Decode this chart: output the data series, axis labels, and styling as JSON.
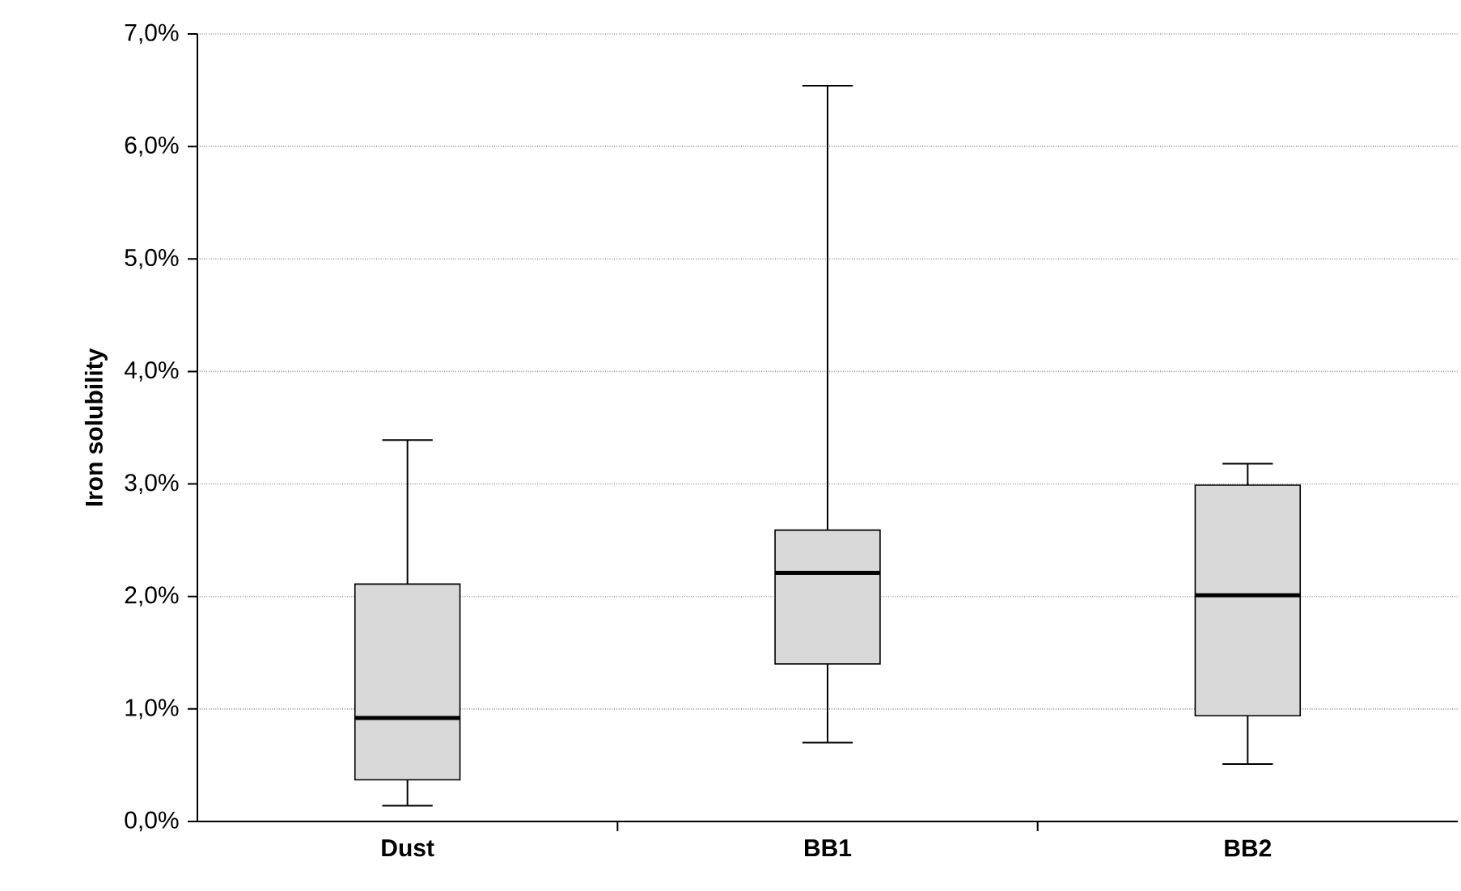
{
  "chart_data": {
    "type": "box",
    "ylabel": "Iron solubility",
    "categories": [
      "Dust",
      "BB1",
      "BB2"
    ],
    "boxes": [
      {
        "low": 0.14,
        "q1": 0.37,
        "median": 0.92,
        "q3": 2.11,
        "high": 3.39
      },
      {
        "low": 0.7,
        "q1": 1.4,
        "median": 2.21,
        "q3": 2.59,
        "high": 6.54
      },
      {
        "low": 0.51,
        "q1": 0.94,
        "median": 2.01,
        "q3": 2.99,
        "high": 3.18
      }
    ],
    "color": "#d9d9d9",
    "ylim": [
      0,
      7
    ],
    "yticks": [
      {
        "value": 0,
        "label": "0,0%"
      },
      {
        "value": 1,
        "label": "1,0%"
      },
      {
        "value": 2,
        "label": "2,0%"
      },
      {
        "value": 3,
        "label": "3,0%"
      },
      {
        "value": 4,
        "label": "4,0%"
      },
      {
        "value": 5,
        "label": "5,0%"
      },
      {
        "value": 6,
        "label": "6,0%"
      },
      {
        "value": 7,
        "label": "7,0%"
      }
    ],
    "grid": "y"
  }
}
